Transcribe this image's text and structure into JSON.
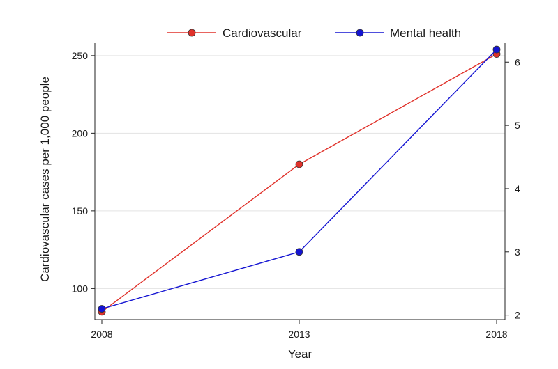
{
  "chart_data": {
    "type": "line",
    "x": [
      2008,
      2013,
      2018
    ],
    "xlabel": "Year",
    "ylabel": "Cardiovascular cases per 1,000 people",
    "ylabel_right": "",
    "xlim": [
      2008,
      2018
    ],
    "ylim": [
      80,
      258
    ],
    "ylim_right": [
      1.93,
      6.3
    ],
    "y_ticks": [
      100,
      150,
      200,
      250
    ],
    "y_ticks_right": [
      2,
      3,
      4,
      5,
      6
    ],
    "x_ticks": [
      2008,
      2013,
      2018
    ],
    "grid": "horizontal",
    "legend": "top-center",
    "series": [
      {
        "name": "Cardiovascular",
        "axis": "left",
        "color": "#e0312a",
        "values": [
          85,
          180,
          251
        ]
      },
      {
        "name": "Mental health",
        "axis": "right",
        "color": "#1414d2",
        "values": [
          2.1,
          3.0,
          6.2
        ]
      }
    ]
  }
}
